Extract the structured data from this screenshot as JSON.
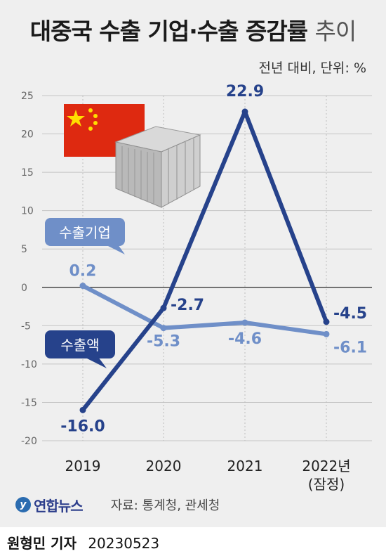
{
  "header": {
    "title_main": "대중국 수출 기업·수출 증감률",
    "title_suffix": "추이",
    "unit": "전년 대비, 단위: %"
  },
  "chart_data": {
    "type": "line",
    "categories": [
      "2019",
      "2020",
      "2021",
      "2022년 (잠정)"
    ],
    "y_ticks": [
      "25",
      "20",
      "15",
      "10",
      "5",
      "0",
      "-5",
      "-10",
      "-15",
      "-20"
    ],
    "ylim": [
      -20,
      25
    ],
    "series": [
      {
        "name": "수출기업",
        "values": [
          0.2,
          -5.3,
          -4.6,
          -6.1
        ],
        "labels": [
          "0.2",
          "-5.3",
          "-4.6",
          "-6.1"
        ],
        "color": "#6f8fc8"
      },
      {
        "name": "수출액",
        "values": [
          -16.0,
          -2.7,
          22.9,
          -4.5
        ],
        "labels": [
          "-16.0",
          "-2.7",
          "22.9",
          "-4.5"
        ],
        "color": "#26428b"
      }
    ]
  },
  "source": {
    "logo": "연합뉴스",
    "text": "자료: 통계청, 관세청"
  },
  "footer": {
    "reporter": "원형민 기자",
    "date": "20230523"
  },
  "colors": {
    "background": "#efefef",
    "series_light": "#6f8fc8",
    "series_dark": "#26428b",
    "flag_red": "#de2910",
    "flag_star": "#ffde00"
  }
}
